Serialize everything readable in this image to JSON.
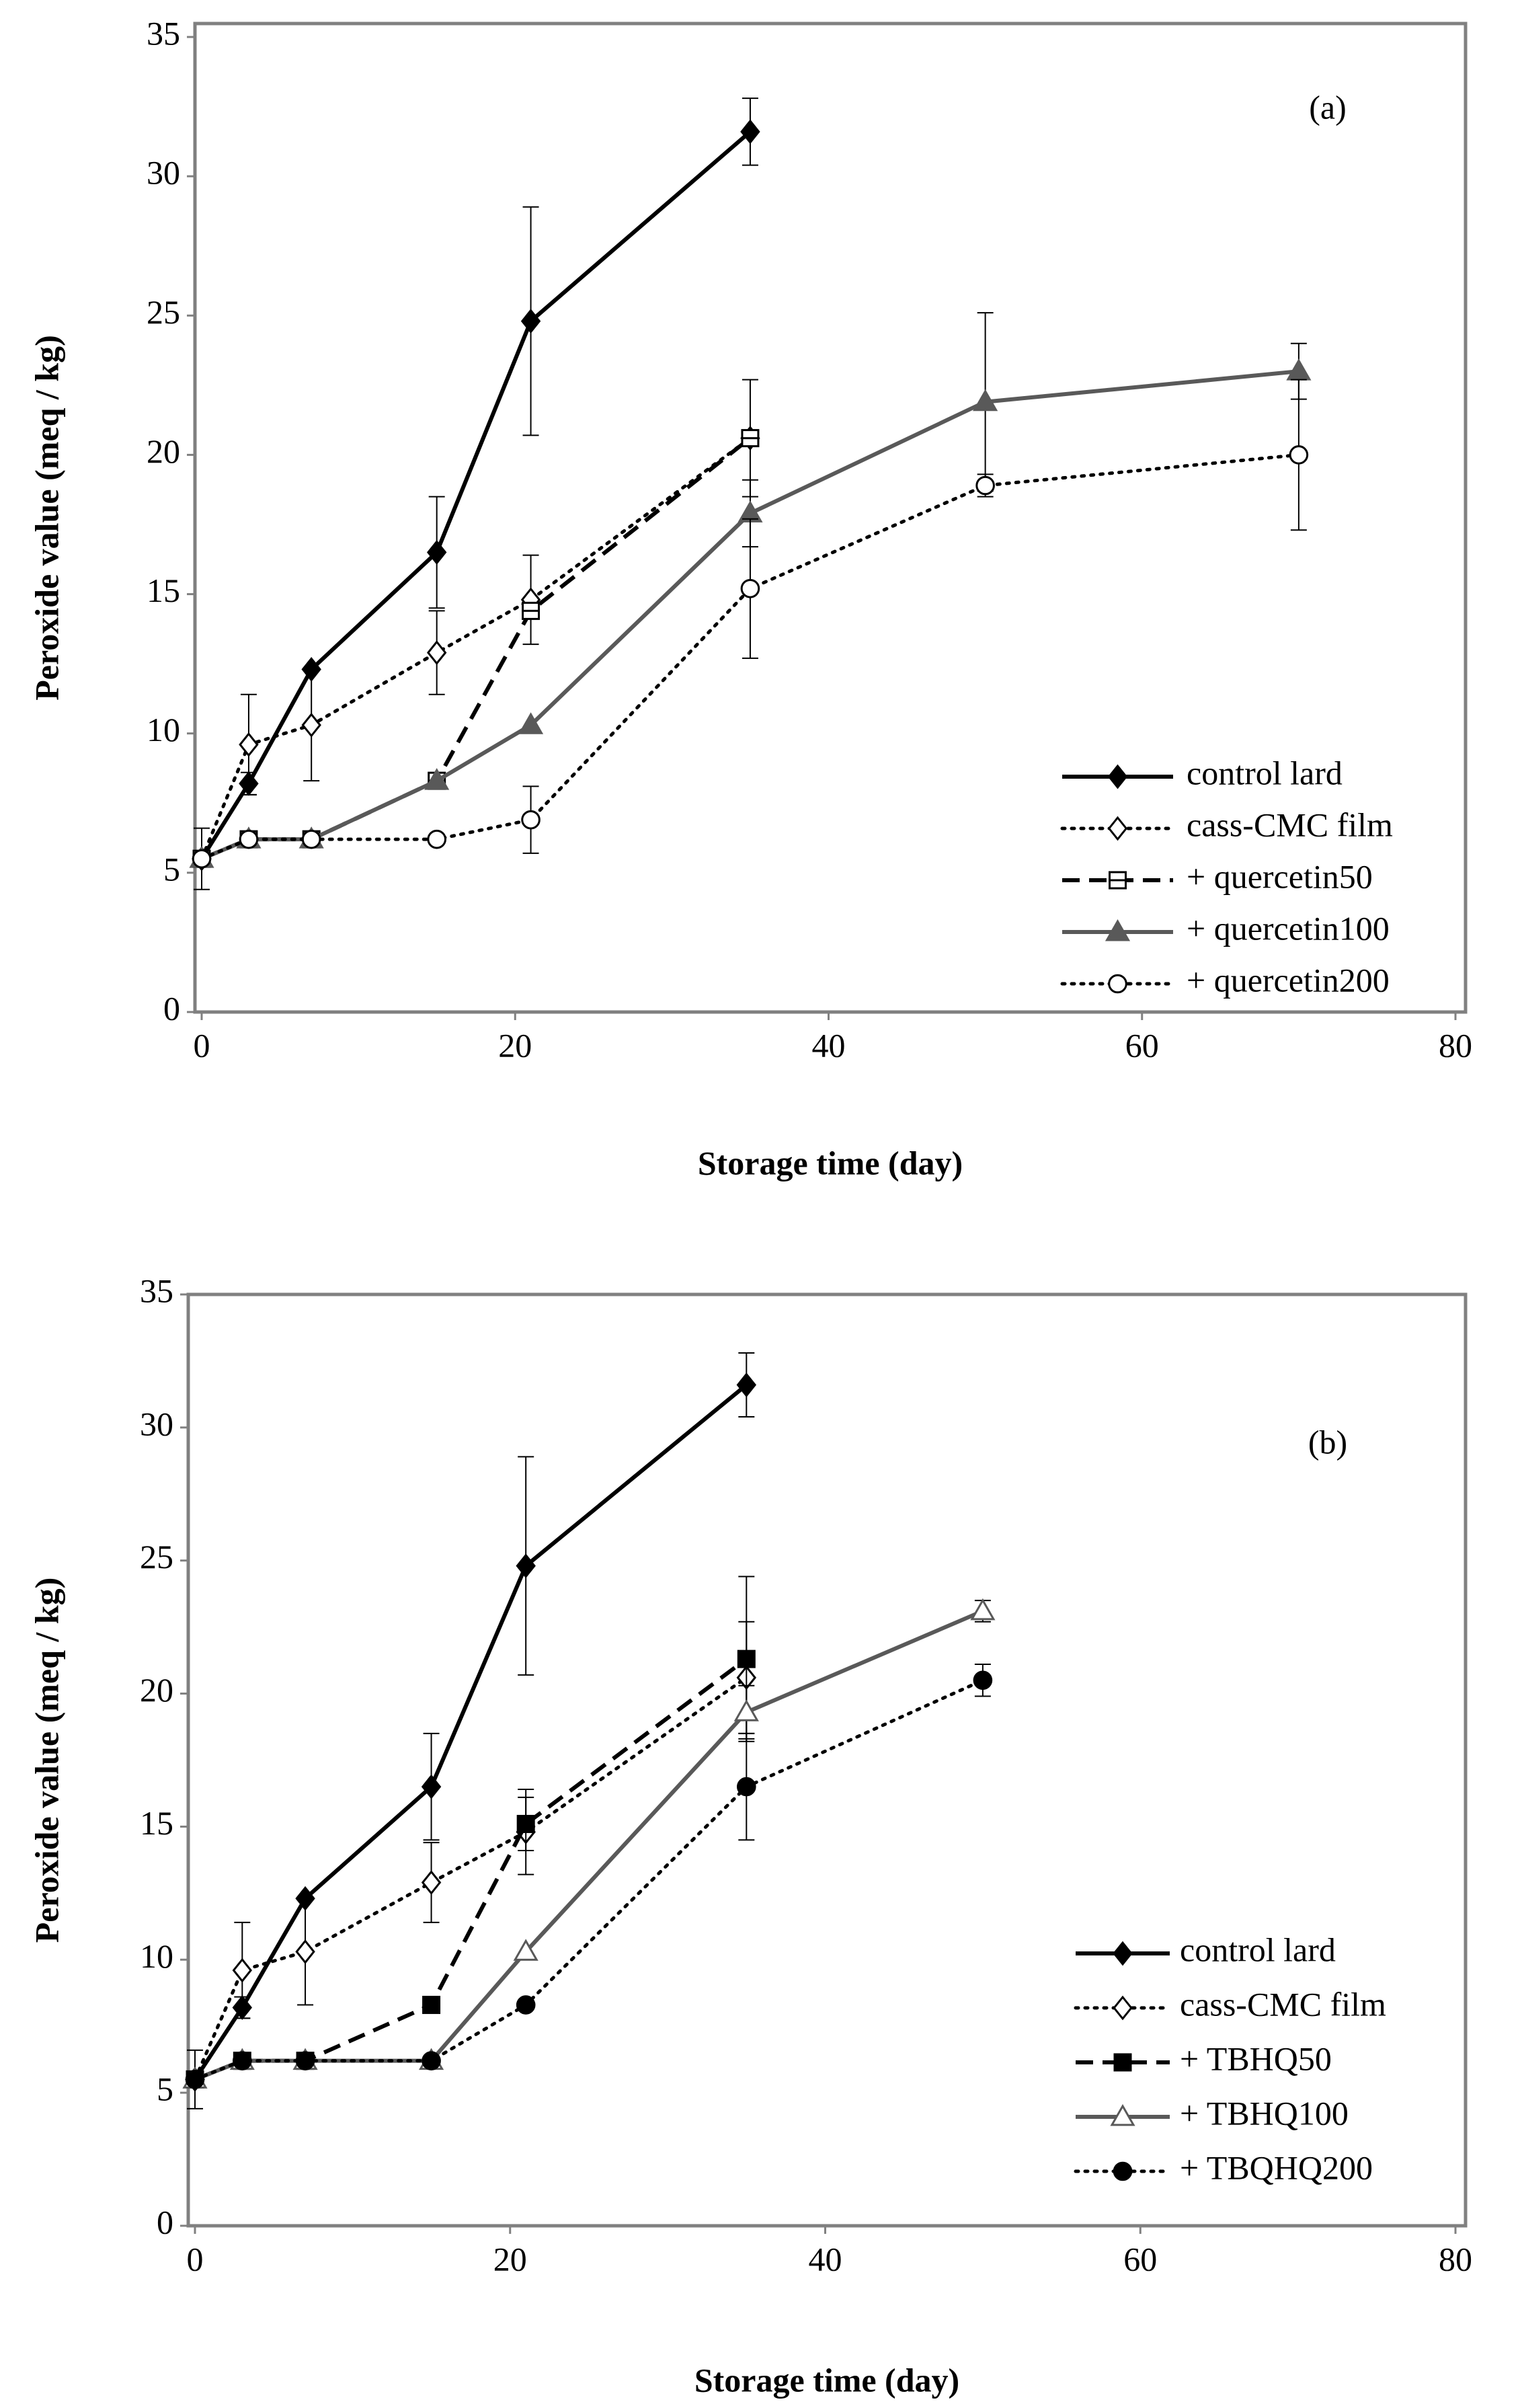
{
  "chart_data": [
    {
      "type": "line",
      "annotation": "(a)",
      "x_label": "Storage time (day)",
      "y_label": "Peroxide value (meq / kg)",
      "xlim": [
        0,
        80
      ],
      "xticks": [
        0,
        20,
        40,
        60,
        80
      ],
      "ylim": [
        0,
        35
      ],
      "yticks": [
        0,
        5,
        10,
        15,
        20,
        25,
        30,
        35
      ],
      "grid": false,
      "legend": "lower right",
      "series": [
        {
          "name": "control lard",
          "color": "#000000",
          "dash": "solid",
          "marker": "diamond",
          "marker_fill": "filled",
          "x": [
            0,
            3,
            7,
            15,
            21,
            35
          ],
          "values": [
            5.5,
            8.2,
            12.3,
            16.5,
            24.8,
            31.6
          ],
          "errors": [
            1.1,
            0.4,
            null,
            2.0,
            4.1,
            1.2
          ]
        },
        {
          "name": "cass-CMC film",
          "color": "#000000",
          "dash": "dotted",
          "marker": "diamond",
          "marker_fill": "open",
          "x": [
            0,
            3,
            7,
            15,
            21,
            35
          ],
          "values": [
            5.5,
            9.6,
            10.3,
            12.9,
            14.8,
            20.6
          ],
          "errors": [
            null,
            1.8,
            2.0,
            1.5,
            1.6,
            2.1
          ]
        },
        {
          "name": "+ quercetin50",
          "color": "#000000",
          "dash": "dashed",
          "marker": "square",
          "marker_fill": "half",
          "x": [
            0,
            3,
            7,
            15,
            21,
            35
          ],
          "values": [
            5.5,
            6.2,
            6.2,
            8.3,
            14.4,
            20.6
          ],
          "errors": [
            null,
            null,
            null,
            null,
            null,
            null
          ]
        },
        {
          "name": "+ quercetin100",
          "color": "#595959",
          "dash": "solid",
          "marker": "triangle",
          "marker_fill": "filled",
          "x": [
            0,
            3,
            7,
            15,
            21,
            35,
            50,
            70
          ],
          "values": [
            5.5,
            6.2,
            6.2,
            8.3,
            10.3,
            17.9,
            21.9,
            23.0
          ],
          "errors": [
            null,
            null,
            null,
            null,
            null,
            1.2,
            3.2,
            1.0
          ]
        },
        {
          "name": "+ quercetin200",
          "color": "#000000",
          "dash": "dotted",
          "marker": "circle",
          "marker_fill": "open",
          "x": [
            0,
            3,
            7,
            15,
            21,
            35,
            50,
            70
          ],
          "values": [
            5.5,
            6.2,
            6.2,
            6.2,
            6.9,
            15.2,
            18.9,
            20.0
          ],
          "errors": [
            null,
            null,
            null,
            null,
            1.2,
            2.5,
            0.4,
            2.7
          ]
        }
      ]
    },
    {
      "type": "line",
      "annotation": "(b)",
      "x_label": "Storage time (day)",
      "y_label": "Peroxide value (meq / kg)",
      "xlim": [
        0,
        80
      ],
      "xticks": [
        0,
        20,
        40,
        60,
        80
      ],
      "ylim": [
        0,
        35
      ],
      "yticks": [
        0,
        5,
        10,
        15,
        20,
        25,
        30,
        35
      ],
      "grid": false,
      "legend": "lower right",
      "series": [
        {
          "name": "control lard",
          "color": "#000000",
          "dash": "solid",
          "marker": "diamond",
          "marker_fill": "filled",
          "x": [
            0,
            3,
            7,
            15,
            21,
            35
          ],
          "values": [
            5.5,
            8.2,
            12.3,
            16.5,
            24.8,
            31.6
          ],
          "errors": [
            1.1,
            0.4,
            null,
            2.0,
            4.1,
            1.2
          ]
        },
        {
          "name": "cass-CMC film",
          "color": "#000000",
          "dash": "dotted",
          "marker": "diamond",
          "marker_fill": "open",
          "x": [
            0,
            3,
            7,
            15,
            21,
            35
          ],
          "values": [
            5.5,
            9.6,
            10.3,
            12.9,
            14.8,
            20.6
          ],
          "errors": [
            null,
            1.8,
            2.0,
            1.5,
            1.6,
            2.1
          ]
        },
        {
          "name": "+ TBHQ50",
          "color": "#000000",
          "dash": "dashed",
          "marker": "square",
          "marker_fill": "filled",
          "x": [
            0,
            3,
            7,
            15,
            21,
            35
          ],
          "values": [
            5.5,
            6.2,
            6.2,
            8.3,
            15.1,
            21.3
          ],
          "errors": [
            null,
            null,
            null,
            null,
            1.0,
            3.1
          ]
        },
        {
          "name": "+ TBHQ100",
          "color": "#595959",
          "dash": "solid",
          "marker": "triangle",
          "marker_fill": "open",
          "x": [
            0,
            3,
            7,
            15,
            21,
            35,
            50
          ],
          "values": [
            5.5,
            6.2,
            6.2,
            6.2,
            10.3,
            19.3,
            23.1
          ],
          "errors": [
            null,
            null,
            null,
            null,
            null,
            1.0,
            0.4
          ]
        },
        {
          "name": "+ TBQHQ200",
          "color": "#000000",
          "dash": "dotted",
          "marker": "circle",
          "marker_fill": "filled",
          "x": [
            0,
            3,
            7,
            15,
            21,
            35,
            50
          ],
          "values": [
            5.5,
            6.2,
            6.2,
            6.2,
            8.3,
            16.5,
            20.5
          ],
          "errors": [
            null,
            null,
            null,
            null,
            null,
            2.0,
            0.6
          ]
        }
      ]
    }
  ]
}
